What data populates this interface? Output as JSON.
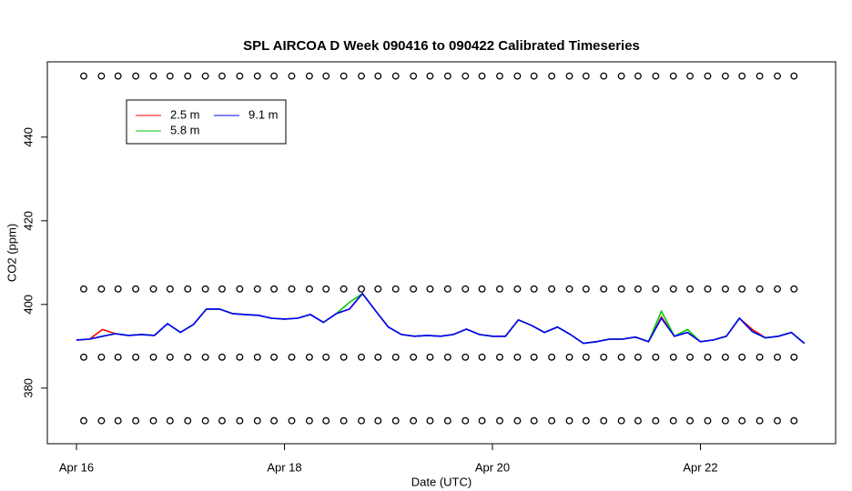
{
  "chart_data": {
    "type": "line",
    "title": "SPL AIRCOA D  Week 090416 to 090422  Calibrated Timeseries",
    "x_label": "Date (UTC)",
    "y_label": "CO2 (ppm)",
    "xlim": [
      -0.28,
      7.3
    ],
    "ylim": [
      366.7,
      458.0
    ],
    "xticks": [
      {
        "value": 0,
        "label": "Apr 16"
      },
      {
        "value": 2,
        "label": "Apr 18"
      },
      {
        "value": 4,
        "label": "Apr 20"
      },
      {
        "value": 6,
        "label": "Apr 22"
      }
    ],
    "yticks": [
      380,
      400,
      420,
      440
    ],
    "legend": "top-left",
    "x": [
      0,
      0.125,
      0.25,
      0.375,
      0.5,
      0.625,
      0.75,
      0.875,
      1,
      1.125,
      1.25,
      1.375,
      1.5,
      1.625,
      1.75,
      1.875,
      2,
      2.125,
      2.25,
      2.375,
      2.5,
      2.625,
      2.75,
      2.875,
      3,
      3.125,
      3.25,
      3.375,
      3.5,
      3.625,
      3.75,
      3.875,
      4,
      4.125,
      4.25,
      4.375,
      4.5,
      4.625,
      4.75,
      4.875,
      5,
      5.125,
      5.25,
      5.375,
      5.5,
      5.625,
      5.75,
      5.875,
      6,
      6.125,
      6.25,
      6.375,
      6.5,
      6.625,
      6.75,
      6.875,
      7
    ],
    "series": [
      {
        "name": "2.5 m",
        "color": "#ff0000",
        "values": [
          391.5,
          391.7,
          394,
          393,
          392.6,
          392.8,
          392.6,
          395.4,
          393.3,
          395.2,
          398.9,
          398.9,
          397.8,
          397.6,
          397.4,
          396.7,
          396.5,
          396.7,
          397.6,
          395.7,
          397.8,
          398.9,
          402.6,
          398.5,
          394.6,
          392.8,
          392.4,
          392.6,
          392.4,
          392.8,
          394.1,
          392.8,
          392.4,
          392.4,
          396.3,
          395,
          393.3,
          394.6,
          392.8,
          390.7,
          391.1,
          391.7,
          391.7,
          392.2,
          391.1,
          397,
          392.4,
          393.3,
          391.1,
          391.5,
          392.4,
          396.7,
          394,
          392,
          392.4,
          393.3,
          390.7
        ]
      },
      {
        "name": "5.8 m",
        "color": "#00cc00",
        "values": [
          391.5,
          391.7,
          392.4,
          393,
          392.6,
          392.8,
          392.6,
          395.4,
          393.3,
          395.2,
          398.9,
          398.9,
          397.8,
          397.6,
          397.4,
          396.7,
          396.5,
          396.7,
          397.6,
          395.7,
          397.8,
          400.5,
          402.6,
          398.5,
          394.6,
          392.8,
          392.4,
          392.6,
          392.4,
          392.8,
          394.1,
          392.8,
          392.4,
          392.4,
          396.3,
          395,
          393.3,
          394.6,
          392.8,
          390.7,
          391.1,
          391.7,
          391.7,
          392.2,
          391.1,
          398.4,
          392.4,
          394,
          391.1,
          391.5,
          392.4,
          396.7,
          393.5,
          392,
          392.4,
          393.3,
          390.7
        ]
      },
      {
        "name": "9.1 m",
        "color": "#0000ff",
        "values": [
          391.5,
          391.7,
          392.4,
          393,
          392.6,
          392.8,
          392.6,
          395.4,
          393.3,
          395.2,
          398.9,
          398.9,
          397.8,
          397.6,
          397.4,
          396.7,
          396.5,
          396.7,
          397.6,
          395.7,
          397.8,
          398.9,
          402.6,
          398.5,
          394.6,
          392.8,
          392.4,
          392.6,
          392.4,
          392.8,
          394.1,
          392.8,
          392.4,
          392.4,
          396.3,
          395,
          393.3,
          394.6,
          392.8,
          390.7,
          391.1,
          391.7,
          391.7,
          392.2,
          391.1,
          396.7,
          392.4,
          393.3,
          391.1,
          391.5,
          392.4,
          396.7,
          393.5,
          392,
          392.4,
          393.3,
          390.7
        ]
      }
    ],
    "calibration_points": {
      "x": [
        0.07,
        0.24,
        0.4,
        0.57,
        0.74,
        0.9,
        1.07,
        1.24,
        1.4,
        1.57,
        1.74,
        1.9,
        2.07,
        2.24,
        2.4,
        2.57,
        2.74,
        2.9,
        3.07,
        3.24,
        3.4,
        3.57,
        3.74,
        3.9,
        4.07,
        4.24,
        4.4,
        4.57,
        4.74,
        4.9,
        5.07,
        5.24,
        5.4,
        5.57,
        5.74,
        5.9,
        6.07,
        6.24,
        6.4,
        6.57,
        6.74,
        6.9
      ],
      "levels": [
        454.6,
        403.7,
        387.4,
        372.2
      ]
    }
  }
}
